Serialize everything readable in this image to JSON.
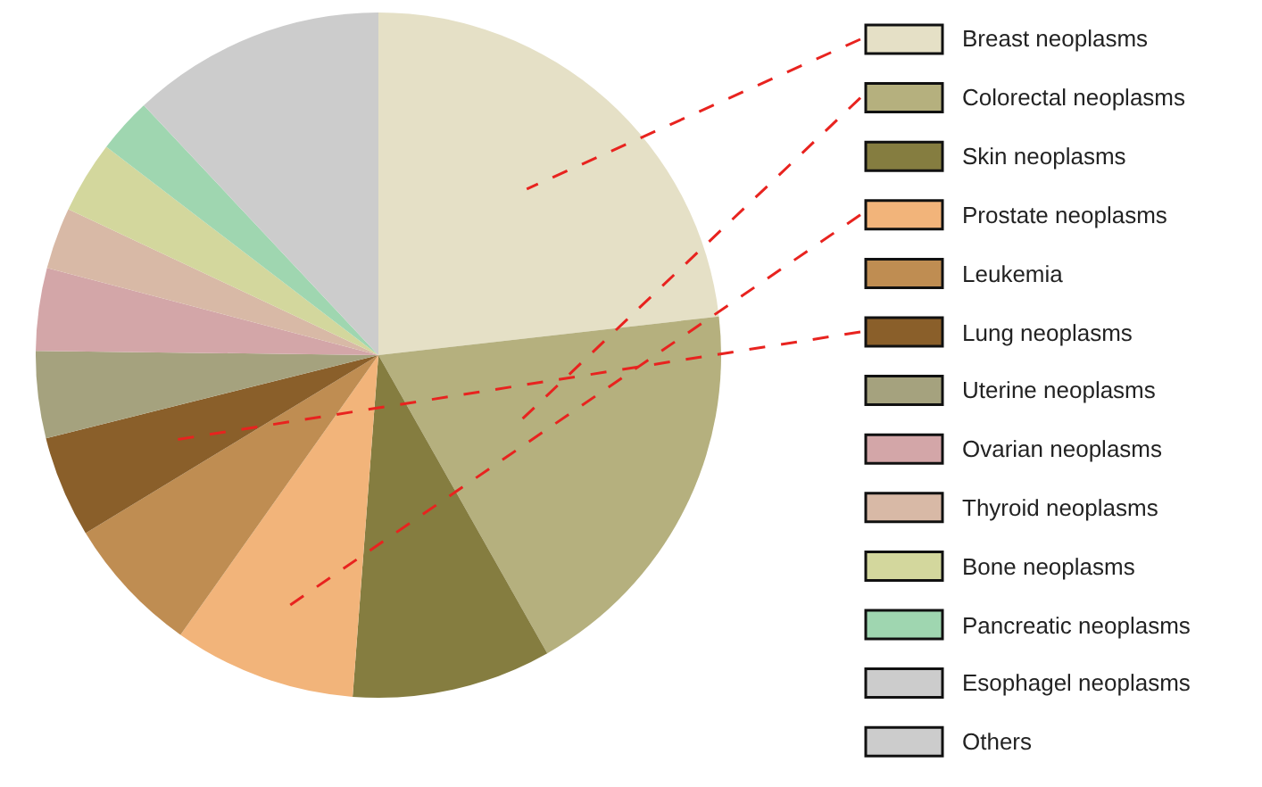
{
  "chart_data": {
    "type": "pie",
    "categories": [
      "Breast neoplasms",
      "Colorectal neoplasms",
      "Skin neoplasms",
      "Prostate neoplasms",
      "Leukemia",
      "Lung neoplasms",
      "Uterine neoplasms",
      "Ovarian neoplasms",
      "Thyroid neoplasms",
      "Bone neoplasms",
      "Pancreatic neoplasms",
      "Esophagel neoplasms",
      "Others"
    ],
    "values": [
      23.2,
      18.6,
      9.4,
      8.6,
      6.5,
      4.8,
      4.1,
      3.9,
      2.9,
      3.4,
      2.6,
      0,
      12.0
    ],
    "colors": [
      "#e5e0c6",
      "#b5b07e",
      "#857d40",
      "#f2b47a",
      "#bf8d52",
      "#8a5f2a",
      "#a5a27e",
      "#d3a6a8",
      "#d8b9a6",
      "#d3d79d",
      "#9fd6b0",
      "#cccccc",
      "#cccccc"
    ],
    "legend": "right"
  }
}
